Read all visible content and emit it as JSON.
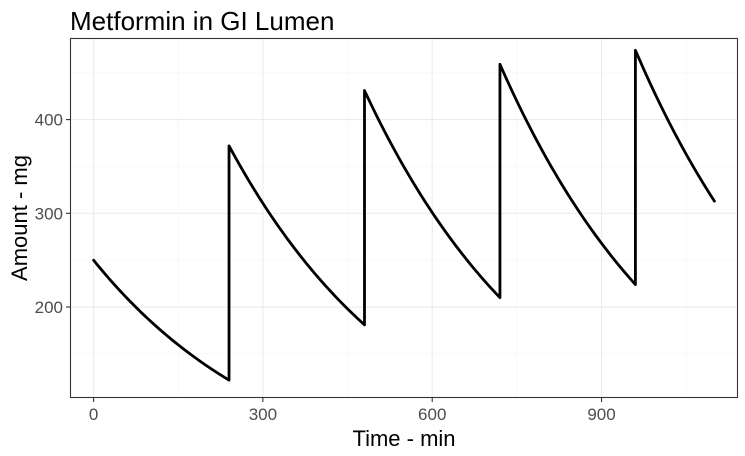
{
  "chart_data": {
    "type": "line",
    "title": "Metformin in GI Lumen",
    "xlabel": "Time - min",
    "ylabel": "Amount - mg",
    "xlim": [
      -40,
      1140
    ],
    "ylim": [
      104,
      486
    ],
    "x_ticks": [
      0,
      300,
      600,
      900
    ],
    "y_ticks": [
      200,
      300,
      400
    ],
    "x_minor_ticks": [
      150,
      450,
      750,
      1050
    ],
    "y_minor_ticks": [
      150,
      250,
      350,
      450
    ],
    "grid": true,
    "legend": "none",
    "line_color": "#000000",
    "series": [
      {
        "dosing_times": [
          0,
          240,
          480,
          720,
          960
        ],
        "x": [
          0,
          240,
          240,
          480,
          480,
          720,
          720,
          960,
          960,
          1100
        ],
        "y": [
          250,
          122,
          372,
          181,
          431,
          210,
          459,
          224,
          474,
          313
        ]
      }
    ]
  }
}
